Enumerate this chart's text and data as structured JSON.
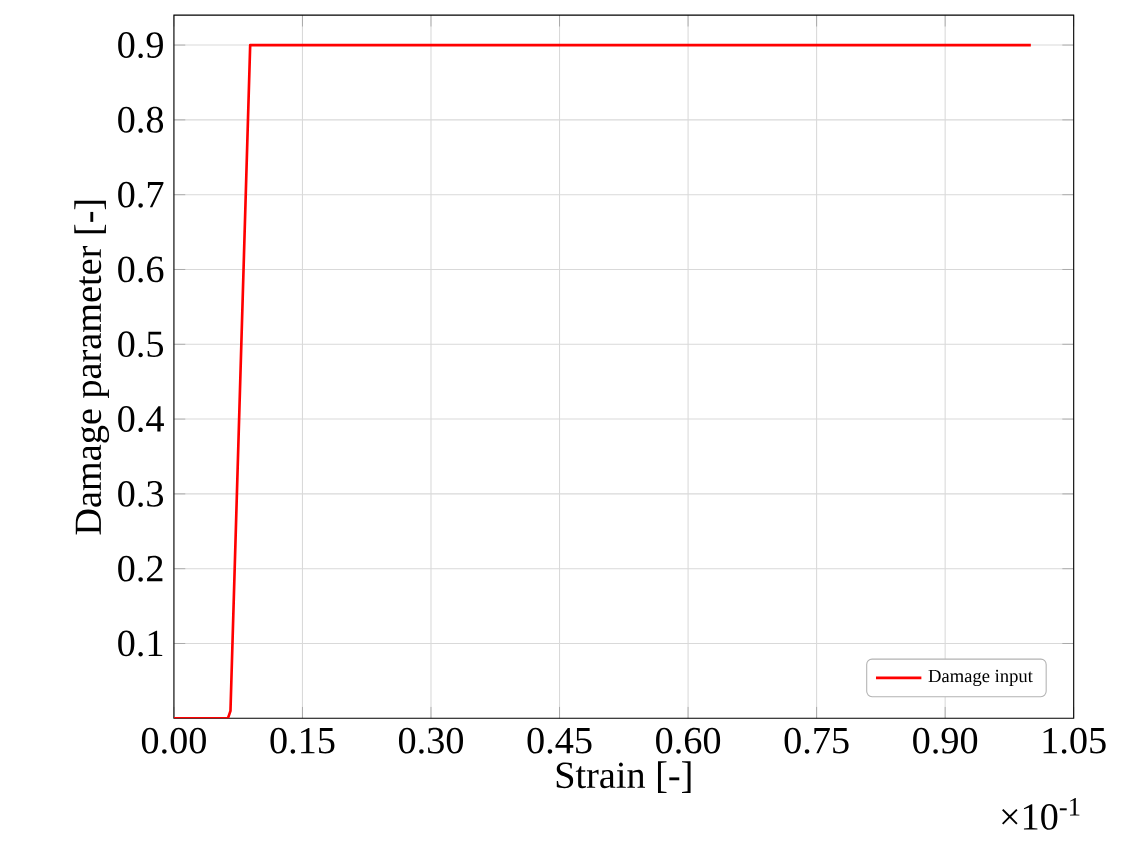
{
  "chart_data": {
    "type": "line",
    "xlabel": "Strain [-]",
    "ylabel": "Damage parameter [-]",
    "annotations": [
      "×10$^{-1}$"
    ],
    "x": [
      0,
      0.063,
      0.066,
      0.089,
      1.0
    ],
    "series": [
      {
        "name": "Damage input",
        "color": "#ff0000",
        "values": [
          0,
          0,
          0.01,
          0.9,
          0.9
        ]
      }
    ],
    "xlim": [
      0,
      1.05
    ],
    "xticks": [
      {
        "value": 0,
        "label": "0.00"
      },
      0.15,
      {
        "value": 0.3,
        "label": "0.30"
      },
      0.45,
      {
        "value": 0.6,
        "label": "0.60"
      },
      0.75,
      {
        "value": 0.9,
        "label": "0.90"
      },
      1.05
    ],
    "ylim": [
      0,
      0.94
    ],
    "yticks": [
      0.1,
      0.2,
      0.3,
      0.4,
      0.5,
      0.6,
      0.7,
      0.8,
      0.9
    ],
    "grid": true,
    "legend": "bottom right",
    "marker": "none",
    "line_style": "solid"
  }
}
